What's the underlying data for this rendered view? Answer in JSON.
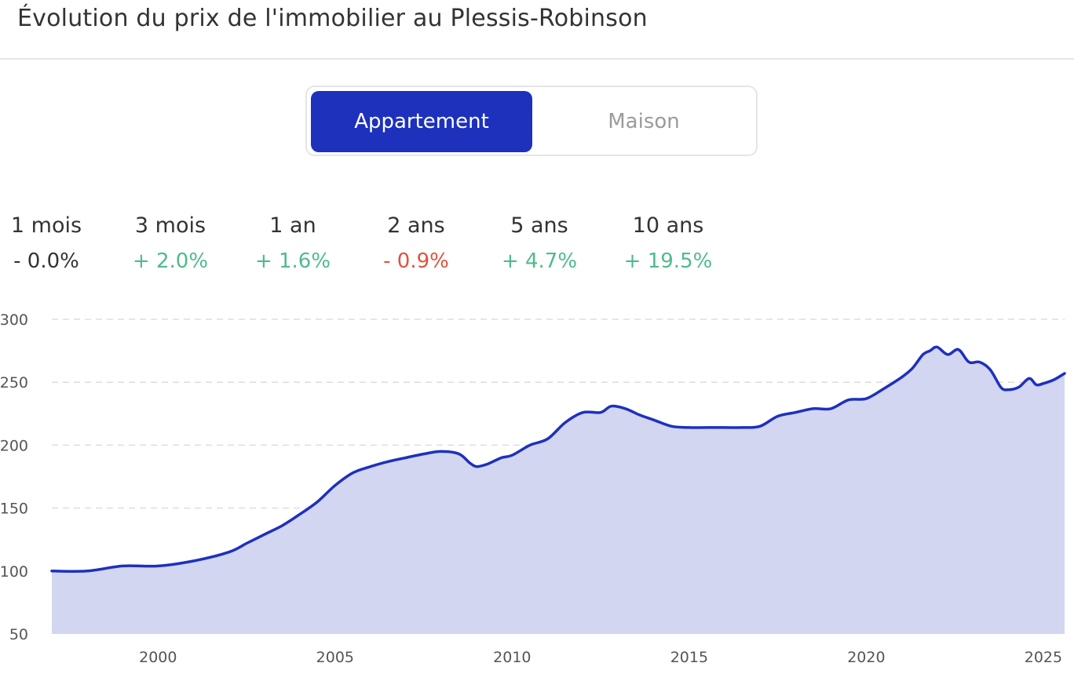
{
  "header": {
    "title": "Évolution du prix de l'immobilier au Plessis-Robinson"
  },
  "toggle": {
    "active": "Appartement",
    "inactive": "Maison"
  },
  "stats": [
    {
      "label": "1 mois",
      "value": "- 0.0%",
      "color": "#333333"
    },
    {
      "label": "3 mois",
      "value": "+ 2.0%",
      "color": "#4fbb8b"
    },
    {
      "label": "1 an",
      "value": "+ 1.6%",
      "color": "#4fbb8b"
    },
    {
      "label": "2 ans",
      "value": "- 0.9%",
      "color": "#e0523f"
    },
    {
      "label": "5 ans",
      "value": "+ 4.7%",
      "color": "#4fbb8b"
    },
    {
      "label": "10 ans",
      "value": "+ 19.5%",
      "color": "#4fbb8b"
    }
  ],
  "colors": {
    "line": "#1d31bd",
    "fill": "#d2d6f0",
    "grid": "#dddddd",
    "accent": "#1d31bd"
  },
  "chart_data": {
    "type": "area",
    "title": "",
    "xlabel": "",
    "ylabel": "",
    "xlim": [
      1997,
      2025.6
    ],
    "ylim": [
      50,
      300
    ],
    "yticks": [
      50,
      100,
      150,
      200,
      250,
      300
    ],
    "ytick_labels": [
      "50",
      "100",
      "150",
      "200",
      "250",
      "300"
    ],
    "xticks": [
      2000,
      2005,
      2010,
      2015,
      2020,
      2025
    ],
    "xtick_labels": [
      "2000",
      "2005",
      "2010",
      "2015",
      "2020",
      "2025"
    ],
    "grid": true,
    "legend": "none",
    "series": [
      {
        "x": [
          1997.0,
          1998.0,
          1999.0,
          2000.0,
          2001.0,
          2002.0,
          2002.5,
          2003.0,
          2003.5,
          2004.0,
          2004.5,
          2005.0,
          2005.5,
          2006.0,
          2006.5,
          2007.0,
          2007.5,
          2008.0,
          2008.5,
          2008.8,
          2009.0,
          2009.3,
          2009.7,
          2010.0,
          2010.5,
          2011.0,
          2011.5,
          2012.0,
          2012.5,
          2012.8,
          2013.2,
          2013.6,
          2014.0,
          2014.5,
          2015.0,
          2015.5,
          2016.0,
          2016.5,
          2017.0,
          2017.5,
          2018.0,
          2018.5,
          2019.0,
          2019.5,
          2020.0,
          2020.5,
          2021.0,
          2021.3,
          2021.6,
          2021.8,
          2022.0,
          2022.3,
          2022.6,
          2022.9,
          2023.2,
          2023.5,
          2023.8,
          2024.0,
          2024.3,
          2024.6,
          2024.8,
          2025.0,
          2025.3,
          2025.6
        ],
        "y": [
          100,
          100,
          104,
          104,
          108,
          115,
          122,
          129,
          136,
          145,
          155,
          168,
          178,
          183,
          187,
          190,
          193,
          195,
          193,
          186,
          183,
          185,
          190,
          192,
          200,
          205,
          218,
          226,
          226,
          231,
          229,
          224,
          220,
          215,
          214,
          214,
          214,
          214,
          215,
          223,
          226,
          229,
          229,
          236,
          237,
          245,
          254,
          261,
          272,
          275,
          278,
          272,
          276,
          266,
          266,
          260,
          246,
          244,
          246,
          253,
          248,
          249,
          252,
          257
        ]
      }
    ]
  }
}
